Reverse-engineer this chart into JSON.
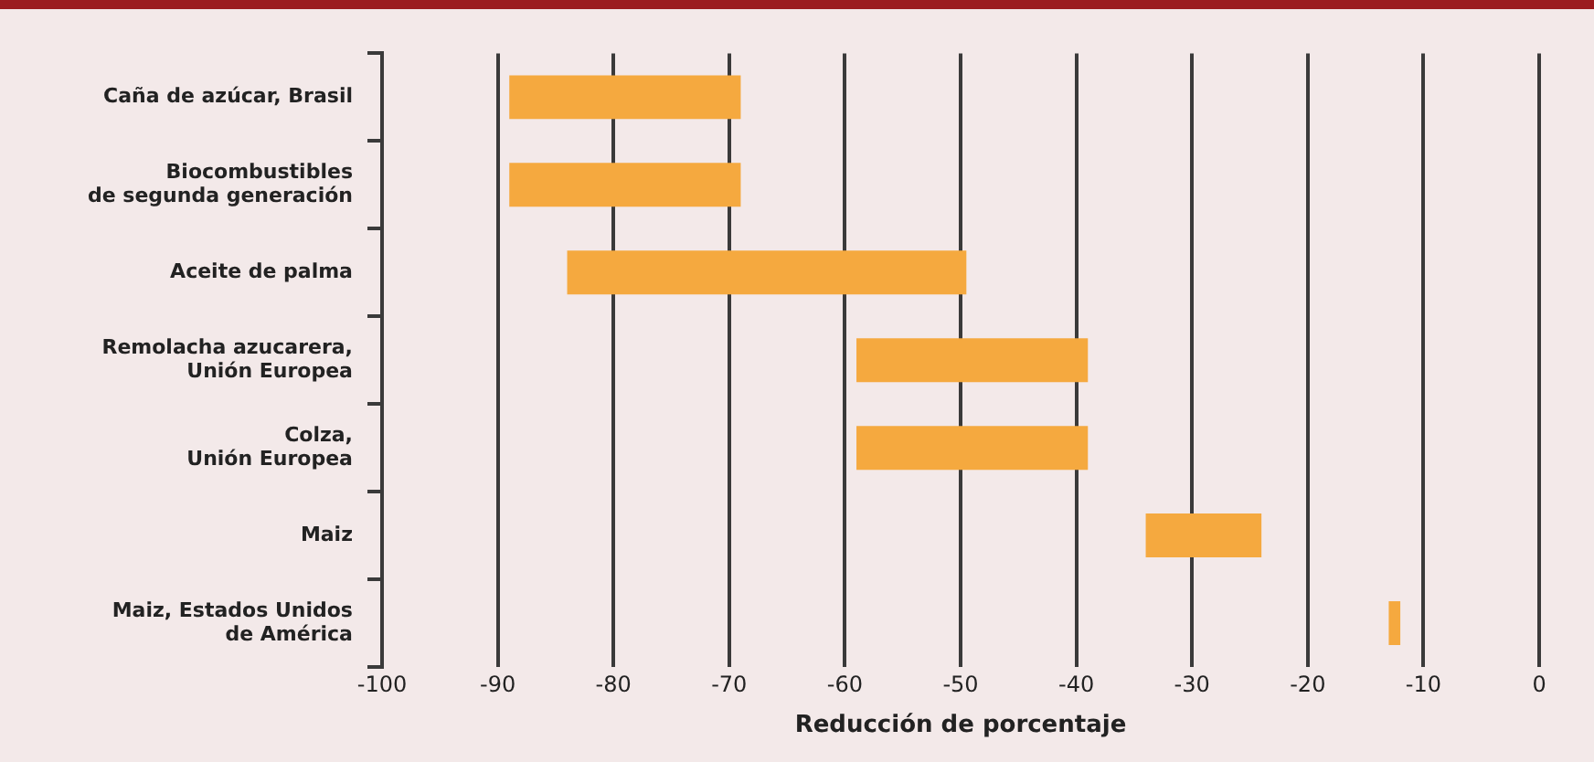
{
  "chart_data": {
    "type": "bar",
    "orientation": "horizontal",
    "xlabel": "Reducción de porcentaje",
    "categories": [
      "Caña de azúcar, Brasil",
      "Biocombustibles\nde segunda generación",
      "Aceite de palma",
      "Remolacha azucarera,\nUnión Europea",
      "Colza,\nUnión Europea",
      "Maiz",
      "Maiz, Estados Unidos\nde América"
    ],
    "base": [
      -89,
      -89,
      -84,
      -59,
      -59,
      -34,
      -13
    ],
    "values": [
      20,
      20,
      34.5,
      20,
      20,
      10,
      1
    ],
    "color": "#f5a93f",
    "xlim": [
      -100,
      0
    ],
    "xticks": [
      -100,
      -90,
      -80,
      -70,
      -60,
      -50,
      -40,
      -30,
      -20,
      -10,
      0
    ],
    "grid": "x",
    "legend": false
  }
}
